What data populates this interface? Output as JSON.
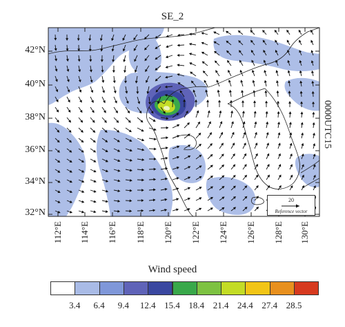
{
  "title": "SE_2",
  "side_label": "0000UTC15",
  "lat_labels": [
    "42°N",
    "40°N",
    "38°N",
    "36°N",
    "34°N",
    "32°N"
  ],
  "lon_labels": [
    "112°E",
    "114°E",
    "116°E",
    "118°E",
    "120°E",
    "122°E",
    "124°E",
    "126°E",
    "128°E",
    "130°E"
  ],
  "reference_vector": {
    "value": "20",
    "label": "Reference vector"
  },
  "colorbar": {
    "title": "Wind speed",
    "colors": [
      "#ffffff",
      "#a9bbe6",
      "#7f97d9",
      "#5f63b8",
      "#3a47a0",
      "#39a84a",
      "#7dc242",
      "#c3dc26",
      "#f2c516",
      "#e8901e",
      "#d73a1f"
    ],
    "labels": [
      "3.4",
      "6.4",
      "9.4",
      "12.4",
      "15.4",
      "18.4",
      "21.4",
      "24.4",
      "27.4",
      "28.5"
    ]
  }
}
